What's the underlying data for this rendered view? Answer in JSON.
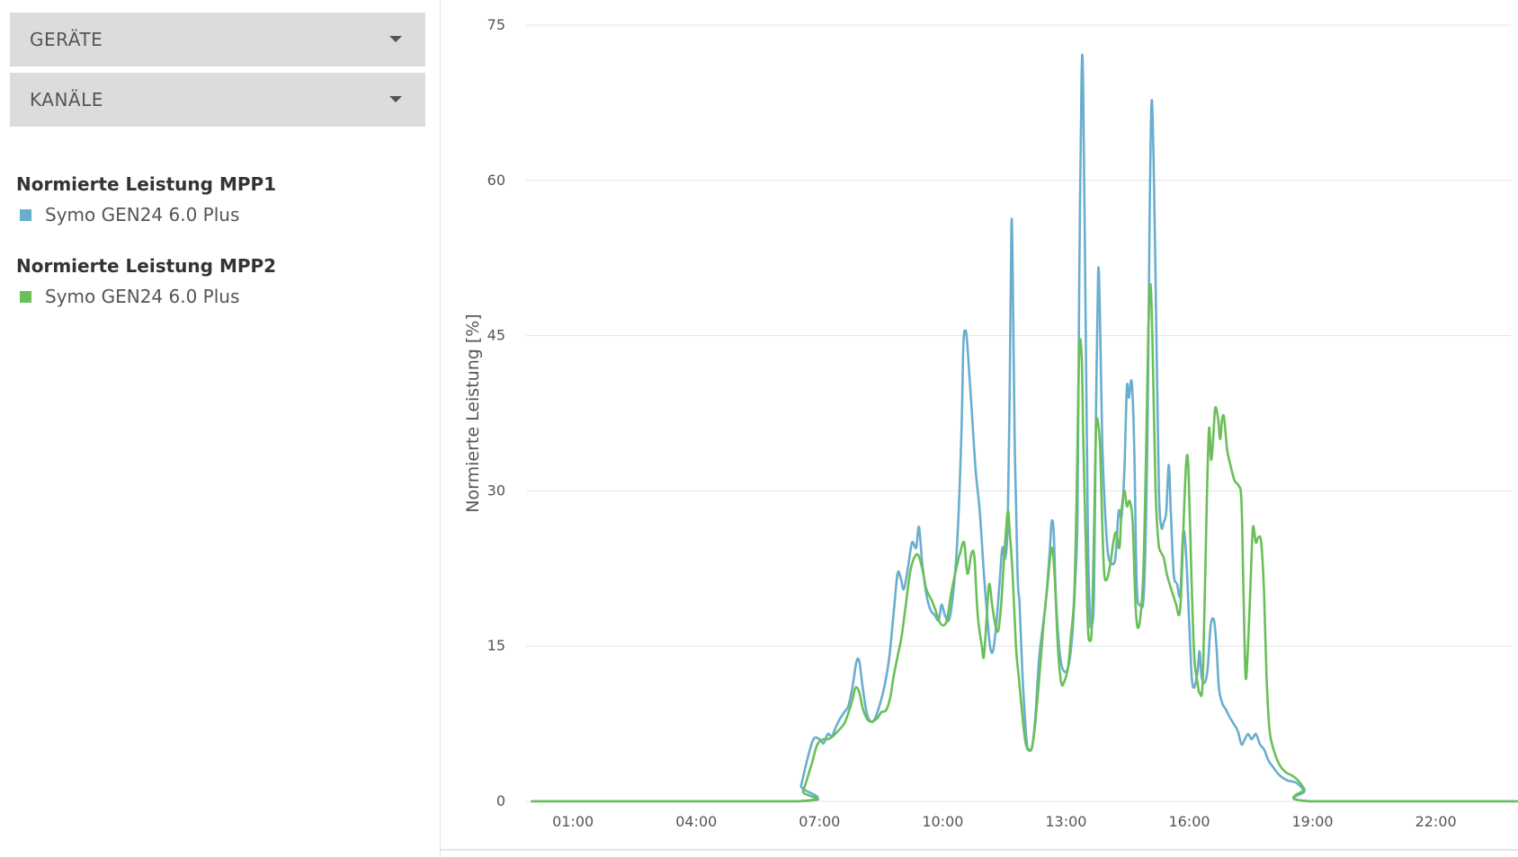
{
  "sidebar": {
    "dropdowns": [
      {
        "label": "GERÄTE"
      },
      {
        "label": "KANÄLE"
      }
    ],
    "legend": [
      {
        "title": "Normierte Leistung MPP1",
        "item": "Symo GEN24 6.0 Plus",
        "color": "#6aaecf",
        "icon": "square-swatch-icon"
      },
      {
        "title": "Normierte Leistung MPP2",
        "item": "Symo GEN24 6.0 Plus",
        "color": "#6abf59",
        "icon": "square-swatch-icon"
      }
    ]
  },
  "chart_data": {
    "type": "line",
    "ylabel": "Normierte Leistung [%]",
    "xlabel": "",
    "ylim": [
      0,
      75
    ],
    "yticks": [
      0,
      15,
      30,
      45,
      60,
      75
    ],
    "xlim": [
      0,
      24
    ],
    "xticks": [
      {
        "v": 1,
        "label": "01:00"
      },
      {
        "v": 4,
        "label": "04:00"
      },
      {
        "v": 7,
        "label": "07:00"
      },
      {
        "v": 10,
        "label": "10:00"
      },
      {
        "v": 13,
        "label": "13:00"
      },
      {
        "v": 16,
        "label": "16:00"
      },
      {
        "v": 19,
        "label": "19:00"
      },
      {
        "v": 22,
        "label": "22:00"
      }
    ],
    "grid": true,
    "series": [
      {
        "name": "Normierte Leistung MPP1 – Symo GEN24 6.0 Plus",
        "color": "#6aaecf",
        "points": [
          [
            0,
            0
          ],
          [
            6.45,
            0
          ],
          [
            6.55,
            1.5
          ],
          [
            6.7,
            4
          ],
          [
            6.85,
            6
          ],
          [
            7.0,
            6
          ],
          [
            7.1,
            5.6
          ],
          [
            7.2,
            6.5
          ],
          [
            7.3,
            6.3
          ],
          [
            7.4,
            7.2
          ],
          [
            7.5,
            8
          ],
          [
            7.6,
            8.6
          ],
          [
            7.7,
            9.2
          ],
          [
            7.8,
            11
          ],
          [
            7.9,
            13.5
          ],
          [
            7.97,
            13.5
          ],
          [
            8.05,
            11
          ],
          [
            8.15,
            8.5
          ],
          [
            8.25,
            7.7
          ],
          [
            8.35,
            8
          ],
          [
            8.5,
            9.8
          ],
          [
            8.6,
            11.5
          ],
          [
            8.7,
            14
          ],
          [
            8.8,
            18
          ],
          [
            8.9,
            22
          ],
          [
            8.98,
            21.5
          ],
          [
            9.05,
            20.5
          ],
          [
            9.15,
            22.5
          ],
          [
            9.25,
            25
          ],
          [
            9.35,
            24.5
          ],
          [
            9.42,
            26.5
          ],
          [
            9.5,
            23
          ],
          [
            9.6,
            20
          ],
          [
            9.7,
            18.5
          ],
          [
            9.8,
            18
          ],
          [
            9.9,
            17.5
          ],
          [
            9.97,
            19
          ],
          [
            10.05,
            18
          ],
          [
            10.15,
            17.5
          ],
          [
            10.25,
            20
          ],
          [
            10.35,
            25
          ],
          [
            10.45,
            35
          ],
          [
            10.5,
            44
          ],
          [
            10.55,
            45.5
          ],
          [
            10.6,
            44
          ],
          [
            10.7,
            38
          ],
          [
            10.8,
            32
          ],
          [
            10.9,
            28
          ],
          [
            11.0,
            22
          ],
          [
            11.08,
            18
          ],
          [
            11.15,
            15
          ],
          [
            11.22,
            14.5
          ],
          [
            11.3,
            17
          ],
          [
            11.38,
            21
          ],
          [
            11.45,
            24.5
          ],
          [
            11.52,
            23.5
          ],
          [
            11.58,
            27
          ],
          [
            11.63,
            40
          ],
          [
            11.67,
            55.5
          ],
          [
            11.7,
            52
          ],
          [
            11.75,
            35
          ],
          [
            11.82,
            22
          ],
          [
            11.87,
            19
          ],
          [
            11.93,
            13
          ],
          [
            12.0,
            8
          ],
          [
            12.05,
            5.5
          ],
          [
            12.1,
            5
          ],
          [
            12.17,
            5.2
          ],
          [
            12.25,
            8
          ],
          [
            12.35,
            14
          ],
          [
            12.5,
            19
          ],
          [
            12.6,
            24
          ],
          [
            12.65,
            27
          ],
          [
            12.7,
            26
          ],
          [
            12.75,
            20
          ],
          [
            12.83,
            15
          ],
          [
            12.9,
            13
          ],
          [
            13.0,
            12.5
          ],
          [
            13.08,
            13.5
          ],
          [
            13.15,
            16
          ],
          [
            13.22,
            21
          ],
          [
            13.28,
            28
          ],
          [
            13.32,
            50
          ],
          [
            13.38,
            70.5
          ],
          [
            13.42,
            68
          ],
          [
            13.48,
            45
          ],
          [
            13.53,
            26
          ],
          [
            13.58,
            18
          ],
          [
            13.62,
            17
          ],
          [
            13.68,
            20
          ],
          [
            13.73,
            38
          ],
          [
            13.78,
            51
          ],
          [
            13.82,
            48
          ],
          [
            13.88,
            35
          ],
          [
            13.95,
            28
          ],
          [
            14.02,
            24
          ],
          [
            14.1,
            23
          ],
          [
            14.2,
            23.5
          ],
          [
            14.28,
            28
          ],
          [
            14.35,
            27.5
          ],
          [
            14.42,
            32
          ],
          [
            14.48,
            40
          ],
          [
            14.53,
            39
          ],
          [
            14.6,
            40.5
          ],
          [
            14.66,
            34
          ],
          [
            14.72,
            21
          ],
          [
            14.8,
            19
          ],
          [
            14.9,
            20.5
          ],
          [
            14.98,
            35
          ],
          [
            15.03,
            55
          ],
          [
            15.08,
            67.5
          ],
          [
            15.13,
            62
          ],
          [
            15.2,
            45
          ],
          [
            15.26,
            30
          ],
          [
            15.32,
            26.5
          ],
          [
            15.38,
            27
          ],
          [
            15.44,
            28
          ],
          [
            15.5,
            32.5
          ],
          [
            15.55,
            28
          ],
          [
            15.62,
            22
          ],
          [
            15.7,
            21
          ],
          [
            15.78,
            20
          ],
          [
            15.85,
            26
          ],
          [
            15.92,
            24
          ],
          [
            16.0,
            17
          ],
          [
            16.06,
            12
          ],
          [
            16.12,
            11
          ],
          [
            16.2,
            12.5
          ],
          [
            16.25,
            14.5
          ],
          [
            16.3,
            12
          ],
          [
            16.38,
            11.5
          ],
          [
            16.45,
            13
          ],
          [
            16.52,
            17
          ],
          [
            16.6,
            17.5
          ],
          [
            16.66,
            15
          ],
          [
            16.72,
            11
          ],
          [
            16.8,
            9.5
          ],
          [
            16.9,
            8.8
          ],
          [
            17.0,
            8
          ],
          [
            17.08,
            7.5
          ],
          [
            17.18,
            6.8
          ],
          [
            17.27,
            5.5
          ],
          [
            17.35,
            6
          ],
          [
            17.43,
            6.5
          ],
          [
            17.52,
            6
          ],
          [
            17.62,
            6.5
          ],
          [
            17.72,
            5.5
          ],
          [
            17.82,
            5
          ],
          [
            17.92,
            4
          ],
          [
            18.0,
            3.5
          ],
          [
            18.2,
            2.5
          ],
          [
            18.4,
            2
          ],
          [
            18.6,
            1.8
          ],
          [
            18.8,
            1
          ],
          [
            18.95,
            0
          ],
          [
            24,
            0
          ]
        ]
      },
      {
        "name": "Normierte Leistung MPP2 – Symo GEN24 6.0 Plus",
        "color": "#6abf59",
        "points": [
          [
            0,
            0
          ],
          [
            6.45,
            0
          ],
          [
            6.6,
            1
          ],
          [
            6.8,
            3.5
          ],
          [
            6.95,
            5.5
          ],
          [
            7.1,
            6
          ],
          [
            7.2,
            6
          ],
          [
            7.3,
            6.2
          ],
          [
            7.45,
            6.8
          ],
          [
            7.6,
            7.5
          ],
          [
            7.7,
            8.5
          ],
          [
            7.8,
            9.8
          ],
          [
            7.88,
            11
          ],
          [
            7.97,
            10.5
          ],
          [
            8.05,
            9
          ],
          [
            8.15,
            8
          ],
          [
            8.25,
            7.7
          ],
          [
            8.4,
            8
          ],
          [
            8.5,
            8.6
          ],
          [
            8.62,
            8.8
          ],
          [
            8.72,
            10
          ],
          [
            8.8,
            12
          ],
          [
            8.9,
            14
          ],
          [
            9.0,
            16
          ],
          [
            9.1,
            19
          ],
          [
            9.2,
            22
          ],
          [
            9.3,
            23.5
          ],
          [
            9.4,
            23.8
          ],
          [
            9.5,
            22.5
          ],
          [
            9.6,
            20.5
          ],
          [
            9.72,
            19.5
          ],
          [
            9.82,
            18.5
          ],
          [
            9.9,
            17.5
          ],
          [
            10.0,
            17
          ],
          [
            10.1,
            17.5
          ],
          [
            10.2,
            20
          ],
          [
            10.3,
            22
          ],
          [
            10.42,
            24
          ],
          [
            10.52,
            25
          ],
          [
            10.6,
            22
          ],
          [
            10.7,
            24
          ],
          [
            10.77,
            23.5
          ],
          [
            10.85,
            18
          ],
          [
            10.95,
            15
          ],
          [
            11.0,
            14
          ],
          [
            11.07,
            18
          ],
          [
            11.13,
            21
          ],
          [
            11.2,
            19
          ],
          [
            11.28,
            17
          ],
          [
            11.35,
            16.5
          ],
          [
            11.42,
            19
          ],
          [
            11.5,
            24
          ],
          [
            11.58,
            28
          ],
          [
            11.63,
            26
          ],
          [
            11.7,
            22
          ],
          [
            11.78,
            15
          ],
          [
            11.85,
            12
          ],
          [
            11.92,
            9
          ],
          [
            12.0,
            6
          ],
          [
            12.07,
            5
          ],
          [
            12.17,
            5.2
          ],
          [
            12.25,
            7.5
          ],
          [
            12.35,
            12
          ],
          [
            12.45,
            17
          ],
          [
            12.55,
            21
          ],
          [
            12.65,
            24.5
          ],
          [
            12.72,
            22
          ],
          [
            12.8,
            15
          ],
          [
            12.88,
            11.5
          ],
          [
            12.95,
            11.5
          ],
          [
            13.05,
            13
          ],
          [
            13.12,
            16
          ],
          [
            13.2,
            20
          ],
          [
            13.26,
            30
          ],
          [
            13.32,
            43.5
          ],
          [
            13.38,
            43
          ],
          [
            13.42,
            35
          ],
          [
            13.48,
            25
          ],
          [
            13.53,
            17
          ],
          [
            13.58,
            15.5
          ],
          [
            13.63,
            17
          ],
          [
            13.68,
            26
          ],
          [
            13.73,
            36
          ],
          [
            13.78,
            36.5
          ],
          [
            13.83,
            34
          ],
          [
            13.88,
            27
          ],
          [
            13.93,
            22
          ],
          [
            14.0,
            21.5
          ],
          [
            14.08,
            23
          ],
          [
            14.15,
            25
          ],
          [
            14.22,
            26
          ],
          [
            14.3,
            24.5
          ],
          [
            14.35,
            28
          ],
          [
            14.42,
            30
          ],
          [
            14.48,
            28.5
          ],
          [
            14.55,
            29
          ],
          [
            14.62,
            27
          ],
          [
            14.68,
            20
          ],
          [
            14.73,
            17
          ],
          [
            14.8,
            17.5
          ],
          [
            14.88,
            22
          ],
          [
            14.95,
            34
          ],
          [
            15.0,
            45
          ],
          [
            15.05,
            50
          ],
          [
            15.1,
            45
          ],
          [
            15.18,
            30
          ],
          [
            15.25,
            25
          ],
          [
            15.32,
            24
          ],
          [
            15.38,
            23.5
          ],
          [
            15.45,
            22
          ],
          [
            15.52,
            21
          ],
          [
            15.6,
            20
          ],
          [
            15.68,
            19
          ],
          [
            15.75,
            18
          ],
          [
            15.8,
            20
          ],
          [
            15.87,
            28
          ],
          [
            15.93,
            33
          ],
          [
            15.98,
            32
          ],
          [
            16.05,
            22
          ],
          [
            16.12,
            14
          ],
          [
            16.2,
            11.5
          ],
          [
            16.25,
            10.5
          ],
          [
            16.33,
            12
          ],
          [
            16.42,
            28
          ],
          [
            16.48,
            36
          ],
          [
            16.53,
            33
          ],
          [
            16.58,
            35
          ],
          [
            16.63,
            38
          ],
          [
            16.7,
            37
          ],
          [
            16.75,
            35
          ],
          [
            16.8,
            37
          ],
          [
            16.85,
            37
          ],
          [
            16.92,
            34
          ],
          [
            17.0,
            32.5
          ],
          [
            17.1,
            31
          ],
          [
            17.2,
            30.5
          ],
          [
            17.27,
            29
          ],
          [
            17.32,
            20
          ],
          [
            17.37,
            12
          ],
          [
            17.43,
            15
          ],
          [
            17.5,
            22
          ],
          [
            17.55,
            26.5
          ],
          [
            17.62,
            25
          ],
          [
            17.68,
            25.5
          ],
          [
            17.75,
            25
          ],
          [
            17.82,
            20
          ],
          [
            17.88,
            12
          ],
          [
            17.95,
            7
          ],
          [
            18.05,
            5
          ],
          [
            18.2,
            3.5
          ],
          [
            18.35,
            2.8
          ],
          [
            18.5,
            2.5
          ],
          [
            18.65,
            2
          ],
          [
            18.8,
            1.2
          ],
          [
            18.95,
            0
          ],
          [
            24,
            0
          ]
        ]
      }
    ]
  }
}
